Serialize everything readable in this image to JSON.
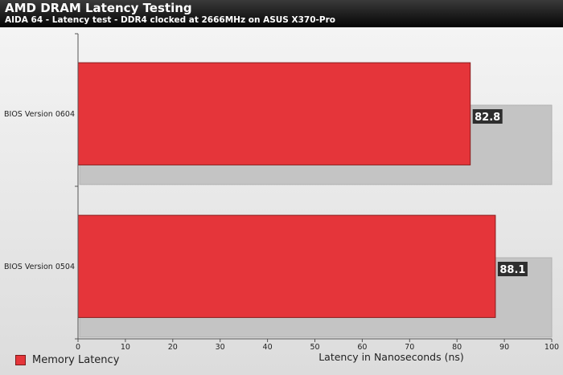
{
  "header": {
    "title": "AMD DRAM Latency Testing",
    "subtitle": "AIDA 64 - Latency test - DDR4 clocked at 2666MHz on ASUS X370-Pro"
  },
  "chart_data": {
    "type": "bar",
    "orientation": "horizontal",
    "title": "AMD DRAM Latency Testing",
    "subtitle": "AIDA 64 - Latency test - DDR4 clocked at 2666MHz on ASUS X370-Pro",
    "categories": [
      "BIOS Version 0604",
      "BIOS Version 0504"
    ],
    "series": [
      {
        "name": "Memory Latency",
        "values": [
          82.8,
          88.1
        ],
        "color": "#e5353a"
      }
    ],
    "value_labels": [
      "82.8",
      "88.1"
    ],
    "xlabel": "Latency in Nanoseconds (ns)",
    "ylabel": "",
    "xlim": [
      0,
      100
    ],
    "xticks": [
      0,
      10,
      20,
      30,
      40,
      50,
      60,
      70,
      80,
      90,
      100
    ],
    "grid": false,
    "legend_position": "bottom-left"
  },
  "legend": {
    "label": "Memory Latency"
  }
}
